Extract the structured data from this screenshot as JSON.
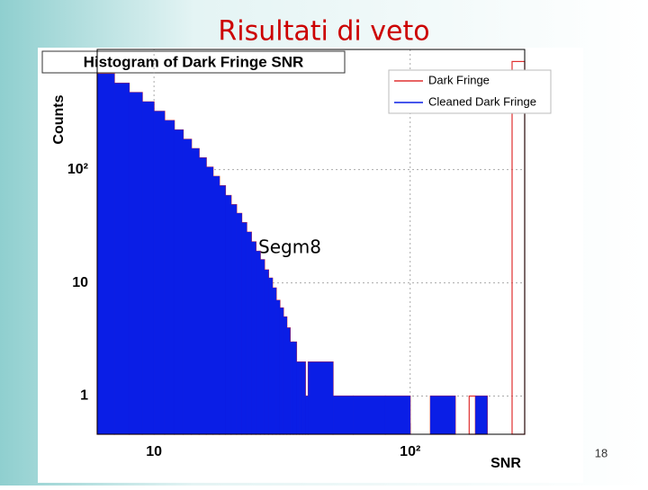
{
  "slide": {
    "title": "Risultati di veto",
    "annotation": "Segm8",
    "page_number": "18"
  },
  "chart_data": {
    "type": "histogram",
    "title": "Histogram of Dark Fringe SNR",
    "x_label": "SNR",
    "y_label": "Counts",
    "x_log": true,
    "y_log": true,
    "grid": true,
    "legend_position": "top-right",
    "bins": [
      6,
      7,
      8,
      9,
      10,
      11,
      12,
      13,
      14,
      15,
      16,
      17,
      18,
      19,
      20,
      21,
      22,
      23,
      24,
      25,
      26,
      27,
      28,
      29,
      30,
      31,
      32,
      33,
      34,
      35,
      36,
      37,
      38,
      39,
      40,
      50,
      60,
      80,
      100,
      120,
      150,
      170,
      180,
      200,
      250,
      280
    ],
    "series": [
      {
        "name": "Dark Fringe",
        "color": "#e03030",
        "values": [
          700,
          579,
          479,
          396,
          327,
          271,
          224,
          185,
          153,
          127,
          105,
          87,
          72,
          59,
          49,
          41,
          34,
          28,
          23,
          19,
          16,
          13,
          11,
          9,
          7,
          6,
          5,
          4,
          3,
          3,
          2,
          2,
          2,
          1,
          2,
          1,
          1,
          1,
          0,
          1,
          0,
          1,
          1,
          0,
          900
        ]
      },
      {
        "name": "Cleaned Dark Fringe",
        "color": "#0a1ee6",
        "values": [
          700,
          579,
          479,
          396,
          327,
          271,
          224,
          185,
          153,
          127,
          105,
          87,
          72,
          59,
          49,
          41,
          34,
          28,
          23,
          19,
          16,
          13,
          11,
          9,
          7,
          6,
          5,
          4,
          3,
          3,
          2,
          2,
          2,
          1,
          2,
          1,
          1,
          1,
          0,
          1,
          0,
          0,
          1,
          0,
          0
        ]
      }
    ],
    "xlim": [
      6,
      280
    ],
    "ylim": [
      0.46,
      1150
    ],
    "xticks": [
      10,
      {
        "value": 100,
        "label": "10²"
      }
    ],
    "yticks": [
      1,
      10,
      {
        "value": 100,
        "label": "10²"
      }
    ]
  }
}
